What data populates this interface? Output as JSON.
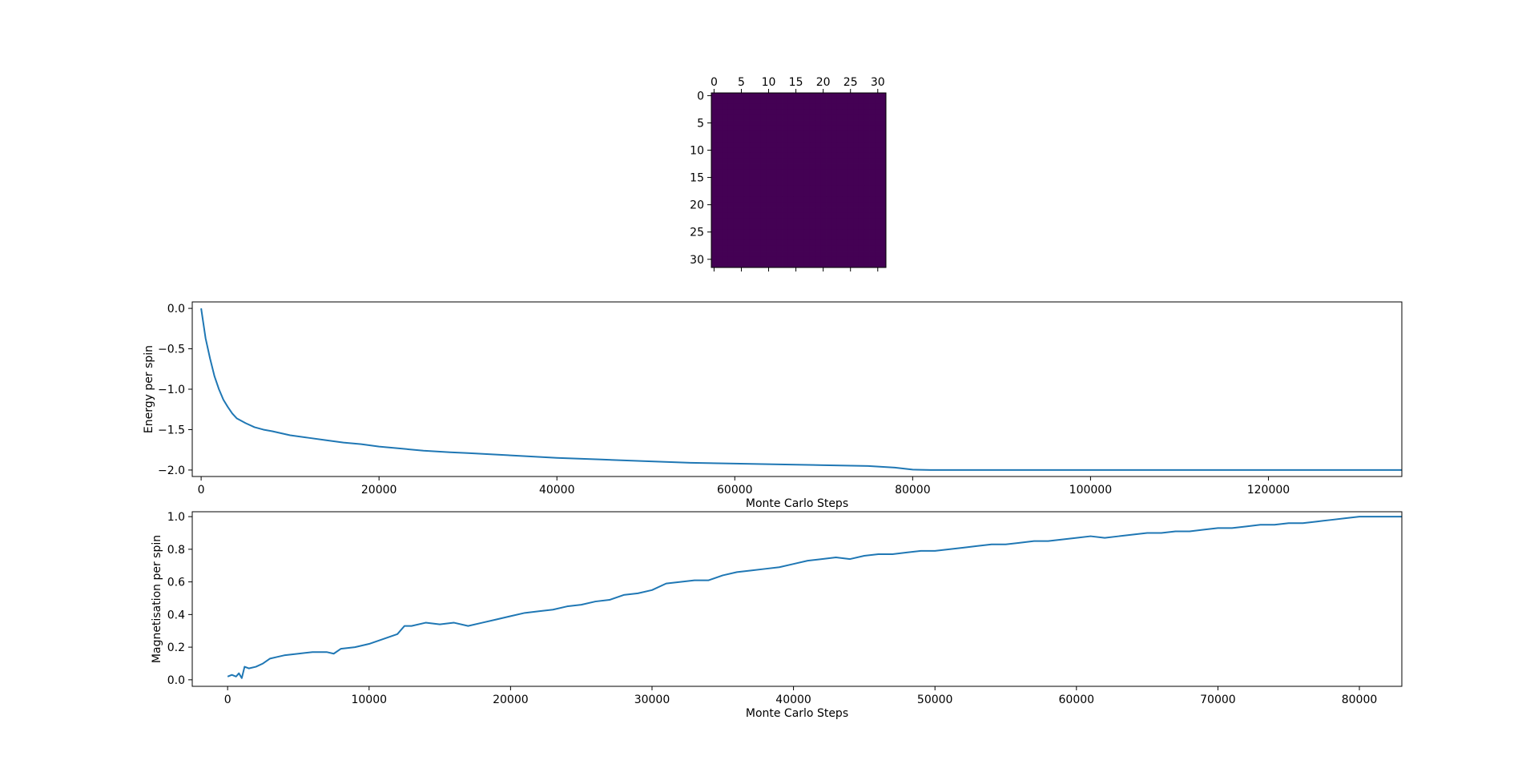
{
  "colors": {
    "line": "#1f77b4",
    "lattice": "#440154",
    "background": "#ffffff",
    "axes": "#000000"
  },
  "chart_data": [
    {
      "type": "heatmap",
      "title": "",
      "xlim": [
        -0.5,
        31.5
      ],
      "ylim": [
        31.5,
        -0.5
      ],
      "x_ticks": [
        0,
        5,
        10,
        15,
        20,
        25,
        30
      ],
      "y_ticks": [
        0,
        5,
        10,
        15,
        20,
        25,
        30
      ],
      "x_tick_position": "top",
      "rows": 32,
      "cols": 32,
      "uniform_value": 1,
      "grid": false
    },
    {
      "type": "line",
      "title": "",
      "xlabel": "Monte Carlo Steps",
      "ylabel": "Energy per spin",
      "xlim": [
        -1000,
        135000
      ],
      "ylim": [
        -2.08,
        0.08
      ],
      "x_ticks": [
        0,
        20000,
        40000,
        60000,
        80000,
        100000,
        120000
      ],
      "y_ticks": [
        0.0,
        -0.5,
        -1.0,
        -1.5,
        -2.0
      ],
      "y_tick_labels": [
        "0.0",
        "−0.5",
        "−1.0",
        "−1.5",
        "−2.0"
      ],
      "grid": false,
      "series": [
        {
          "x": [
            0,
            500,
            1000,
            1500,
            2000,
            2500,
            3000,
            3500,
            4000,
            5000,
            6000,
            7000,
            8000,
            10000,
            12000,
            14000,
            16000,
            18000,
            20000,
            22000,
            25000,
            28000,
            30000,
            35000,
            40000,
            45000,
            50000,
            55000,
            60000,
            65000,
            70000,
            75000,
            78000,
            80000,
            82000,
            90000,
            100000,
            110000,
            120000,
            130000,
            135000
          ],
          "y": [
            0.0,
            -0.37,
            -0.62,
            -0.84,
            -1.0,
            -1.13,
            -1.22,
            -1.3,
            -1.36,
            -1.42,
            -1.47,
            -1.5,
            -1.52,
            -1.57,
            -1.6,
            -1.63,
            -1.66,
            -1.68,
            -1.71,
            -1.73,
            -1.76,
            -1.78,
            -1.79,
            -1.82,
            -1.85,
            -1.87,
            -1.89,
            -1.91,
            -1.92,
            -1.93,
            -1.94,
            -1.95,
            -1.97,
            -1.995,
            -2.0,
            -2.0,
            -2.0,
            -2.0,
            -2.0,
            -2.0,
            -2.0
          ]
        }
      ]
    },
    {
      "type": "line",
      "title": "",
      "xlabel": "Monte Carlo Steps",
      "ylabel": "Magnetisation per spin",
      "xlim": [
        -2500,
        83000
      ],
      "ylim": [
        -0.04,
        1.03
      ],
      "x_ticks": [
        0,
        10000,
        20000,
        30000,
        40000,
        50000,
        60000,
        70000,
        80000
      ],
      "y_ticks": [
        0.0,
        0.2,
        0.4,
        0.6,
        0.8,
        1.0
      ],
      "y_tick_labels": [
        "0.0",
        "0.2",
        "0.4",
        "0.6",
        "0.8",
        "1.0"
      ],
      "grid": false,
      "series": [
        {
          "x": [
            0,
            300,
            600,
            800,
            1000,
            1200,
            1500,
            2000,
            2500,
            3000,
            3500,
            4000,
            5000,
            6000,
            7000,
            7500,
            8000,
            9000,
            10000,
            11000,
            12000,
            12500,
            13000,
            14000,
            15000,
            16000,
            17000,
            18000,
            19000,
            20000,
            21000,
            22000,
            23000,
            24000,
            25000,
            26000,
            27000,
            28000,
            29000,
            30000,
            31000,
            32000,
            33000,
            34000,
            35000,
            36000,
            37000,
            38000,
            39000,
            40000,
            41000,
            42000,
            43000,
            44000,
            45000,
            46000,
            47000,
            48000,
            49000,
            50000,
            51000,
            52000,
            53000,
            54000,
            55000,
            56000,
            57000,
            58000,
            59000,
            60000,
            61000,
            62000,
            63000,
            64000,
            65000,
            66000,
            67000,
            68000,
            69000,
            70000,
            71000,
            72000,
            73000,
            74000,
            75000,
            76000,
            77000,
            78000,
            79000,
            80000,
            81000,
            83000
          ],
          "y": [
            0.02,
            0.03,
            0.02,
            0.04,
            0.01,
            0.08,
            0.07,
            0.08,
            0.1,
            0.13,
            0.14,
            0.15,
            0.16,
            0.17,
            0.17,
            0.16,
            0.19,
            0.2,
            0.22,
            0.25,
            0.28,
            0.33,
            0.33,
            0.35,
            0.34,
            0.35,
            0.33,
            0.35,
            0.37,
            0.39,
            0.41,
            0.42,
            0.43,
            0.45,
            0.46,
            0.48,
            0.49,
            0.52,
            0.53,
            0.55,
            0.59,
            0.6,
            0.61,
            0.61,
            0.64,
            0.66,
            0.67,
            0.68,
            0.69,
            0.71,
            0.73,
            0.74,
            0.75,
            0.74,
            0.76,
            0.77,
            0.77,
            0.78,
            0.79,
            0.79,
            0.8,
            0.81,
            0.82,
            0.83,
            0.83,
            0.84,
            0.85,
            0.85,
            0.86,
            0.87,
            0.88,
            0.87,
            0.88,
            0.89,
            0.9,
            0.9,
            0.91,
            0.91,
            0.92,
            0.93,
            0.93,
            0.94,
            0.95,
            0.95,
            0.96,
            0.96,
            0.97,
            0.98,
            0.99,
            1.0,
            1.0,
            1.0
          ]
        }
      ]
    }
  ]
}
